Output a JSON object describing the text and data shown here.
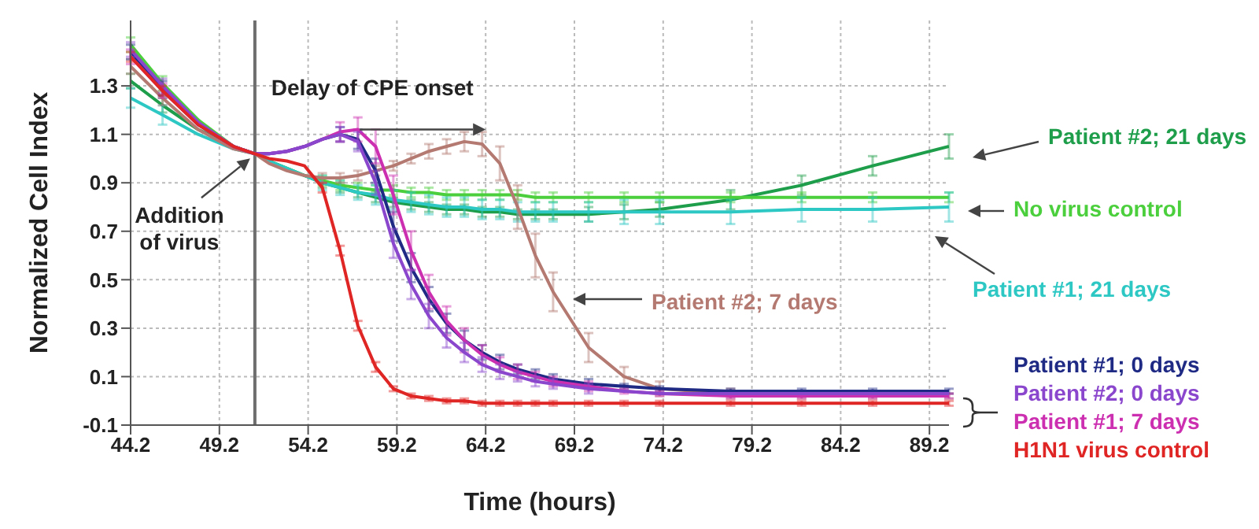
{
  "chart_data": {
    "type": "line",
    "xlabel": "Time (hours)",
    "ylabel": "Normalized Cell Index",
    "xlim": [
      44.2,
      90.3
    ],
    "xticks": [
      44.2,
      49.2,
      54.2,
      59.2,
      64.2,
      69.2,
      74.2,
      79.2,
      84.2,
      89.2
    ],
    "ylim": [
      -0.1,
      1.57
    ],
    "yticks": [
      -0.1,
      0.1,
      0.3,
      0.5,
      0.7,
      0.9,
      1.1,
      1.3
    ],
    "grid": true,
    "x": [
      44.2,
      46,
      48,
      50,
      51.2,
      52,
      53,
      54,
      55,
      56,
      57,
      58,
      59,
      60,
      61,
      62,
      63,
      64,
      65,
      66,
      67,
      68,
      70,
      72,
      74,
      78,
      82,
      86,
      90.3
    ],
    "series": [
      {
        "name": "Patient #2; 21 days",
        "color": "#1e9e4a",
        "values": [
          1.32,
          1.22,
          1.12,
          1.05,
          1.02,
          0.99,
          0.96,
          0.93,
          0.9,
          0.88,
          0.86,
          0.84,
          0.82,
          0.81,
          0.8,
          0.79,
          0.79,
          0.78,
          0.78,
          0.77,
          0.77,
          0.77,
          0.77,
          0.78,
          0.79,
          0.83,
          0.89,
          0.97,
          1.05
        ],
        "errors": [
          0.03,
          0.03,
          null,
          null,
          null,
          null,
          null,
          null,
          0.02,
          0.02,
          0.02,
          0.02,
          0.02,
          0.02,
          0.02,
          0.02,
          0.02,
          0.02,
          0.02,
          0.02,
          0.02,
          0.02,
          0.03,
          0.03,
          0.03,
          0.04,
          0.04,
          0.04,
          0.05
        ]
      },
      {
        "name": "No virus control",
        "color": "#4ccf3c",
        "values": [
          1.47,
          1.31,
          1.16,
          1.05,
          1.02,
          0.99,
          0.96,
          0.93,
          0.91,
          0.89,
          0.88,
          0.87,
          0.87,
          0.86,
          0.86,
          0.85,
          0.85,
          0.85,
          0.85,
          0.85,
          0.84,
          0.84,
          0.84,
          0.84,
          0.84,
          0.84,
          0.84,
          0.84,
          0.84
        ],
        "errors": [
          0.03,
          0.03,
          null,
          null,
          null,
          null,
          null,
          null,
          0.02,
          0.02,
          0.02,
          0.02,
          0.02,
          0.02,
          0.02,
          0.02,
          0.02,
          0.02,
          0.02,
          0.02,
          0.02,
          0.02,
          0.02,
          0.02,
          0.02,
          0.02,
          0.02,
          0.02,
          0.02
        ]
      },
      {
        "name": "Patient #1; 21 days",
        "color": "#2ec8c4",
        "values": [
          1.25,
          1.18,
          1.1,
          1.04,
          1.02,
          0.99,
          0.96,
          0.93,
          0.9,
          0.88,
          0.86,
          0.85,
          0.83,
          0.82,
          0.81,
          0.8,
          0.8,
          0.79,
          0.79,
          0.78,
          0.78,
          0.78,
          0.78,
          0.78,
          0.78,
          0.78,
          0.79,
          0.79,
          0.8
        ],
        "errors": [
          0.04,
          0.04,
          null,
          null,
          null,
          null,
          null,
          null,
          0.03,
          0.03,
          0.03,
          0.04,
          0.04,
          0.04,
          0.04,
          0.04,
          0.04,
          0.04,
          0.04,
          0.04,
          0.04,
          0.04,
          0.04,
          0.05,
          0.05,
          0.05,
          0.05,
          0.05,
          0.06
        ]
      },
      {
        "name": "Patient #2; 7 days",
        "color": "#b47a72",
        "values": [
          1.38,
          1.25,
          1.12,
          1.04,
          1.02,
          0.98,
          0.95,
          0.93,
          0.92,
          0.92,
          0.93,
          0.95,
          0.97,
          1.0,
          1.03,
          1.05,
          1.07,
          1.06,
          0.98,
          0.8,
          0.6,
          0.45,
          0.22,
          0.1,
          0.05,
          0.03,
          0.02,
          0.02,
          0.02
        ],
        "errors": [
          0.03,
          0.03,
          null,
          null,
          null,
          null,
          null,
          null,
          0.02,
          0.02,
          0.02,
          0.02,
          0.02,
          0.02,
          0.03,
          0.03,
          0.04,
          0.05,
          0.07,
          0.09,
          0.09,
          0.08,
          0.06,
          0.04,
          0.03,
          0.02,
          0.01,
          0.01,
          0.01
        ]
      },
      {
        "name": "Patient #1; 0 days",
        "color": "#1f2a85",
        "values": [
          1.44,
          1.29,
          1.14,
          1.05,
          1.02,
          1.02,
          1.03,
          1.05,
          1.08,
          1.1,
          1.08,
          0.95,
          0.72,
          0.55,
          0.42,
          0.32,
          0.25,
          0.2,
          0.16,
          0.13,
          0.11,
          0.09,
          0.07,
          0.06,
          0.05,
          0.04,
          0.04,
          0.04,
          0.04
        ],
        "errors": [
          0.03,
          0.03,
          null,
          null,
          null,
          null,
          null,
          null,
          null,
          0.03,
          0.04,
          0.05,
          0.06,
          0.06,
          0.05,
          0.04,
          0.04,
          0.03,
          0.03,
          0.02,
          0.02,
          0.02,
          0.02,
          0.01,
          0.01,
          0.01,
          0.01,
          0.01,
          0.01
        ]
      },
      {
        "name": "Patient #1; 7 days",
        "color": "#cc2fb0",
        "values": [
          1.42,
          1.28,
          1.14,
          1.05,
          1.02,
          1.02,
          1.03,
          1.05,
          1.08,
          1.11,
          1.12,
          1.05,
          0.85,
          0.62,
          0.45,
          0.33,
          0.25,
          0.19,
          0.15,
          0.12,
          0.1,
          0.08,
          0.06,
          0.04,
          0.03,
          0.02,
          0.02,
          0.02,
          0.02
        ],
        "errors": [
          0.03,
          0.03,
          null,
          null,
          null,
          null,
          null,
          null,
          null,
          0.04,
          0.05,
          0.07,
          0.08,
          0.08,
          0.07,
          0.06,
          0.05,
          0.04,
          0.03,
          0.03,
          0.02,
          0.02,
          0.02,
          0.01,
          0.01,
          0.01,
          0.01,
          0.01,
          0.01
        ]
      },
      {
        "name": "Patient #2; 0 days",
        "color": "#8a46cc",
        "values": [
          1.45,
          1.3,
          1.15,
          1.05,
          1.02,
          1.02,
          1.03,
          1.05,
          1.08,
          1.1,
          1.07,
          0.9,
          0.65,
          0.48,
          0.35,
          0.26,
          0.2,
          0.15,
          0.12,
          0.1,
          0.08,
          0.07,
          0.05,
          0.04,
          0.03,
          0.03,
          0.03,
          0.03,
          0.03
        ],
        "errors": [
          0.03,
          0.03,
          null,
          null,
          null,
          null,
          null,
          null,
          null,
          0.03,
          0.04,
          0.05,
          0.06,
          0.06,
          0.05,
          0.04,
          0.04,
          0.03,
          0.03,
          0.02,
          0.02,
          0.02,
          0.02,
          null,
          null,
          null,
          null,
          null,
          null
        ]
      },
      {
        "name": "H1N1 virus control",
        "color": "#e02525",
        "values": [
          1.42,
          1.28,
          1.14,
          1.05,
          1.02,
          1.0,
          0.99,
          0.97,
          0.88,
          0.62,
          0.31,
          0.14,
          0.05,
          0.02,
          0.01,
          0.0,
          0.0,
          -0.01,
          -0.01,
          -0.01,
          -0.01,
          -0.01,
          -0.01,
          -0.01,
          -0.01,
          -0.01,
          -0.01,
          -0.01,
          -0.01
        ],
        "errors": [
          0.02,
          0.02,
          null,
          null,
          null,
          null,
          null,
          null,
          0.02,
          0.02,
          0.02,
          0.02,
          0.01,
          0.01,
          0.01,
          0.01,
          0.01,
          0.01,
          0.01,
          0.01,
          0.01,
          0.01,
          0.01,
          0.01,
          0.01,
          0.01,
          0.01,
          0.01,
          0.01
        ]
      }
    ],
    "ref_lines": [
      {
        "axis": "x",
        "value": 51.2,
        "color": "#6e6e6e"
      }
    ],
    "annotations": [
      {
        "text": "Addition of virus",
        "x": 51.2,
        "y": 1.02
      },
      {
        "text": "Delay of CPE onset",
        "x": 64.2,
        "y": 1.12
      }
    ]
  }
}
